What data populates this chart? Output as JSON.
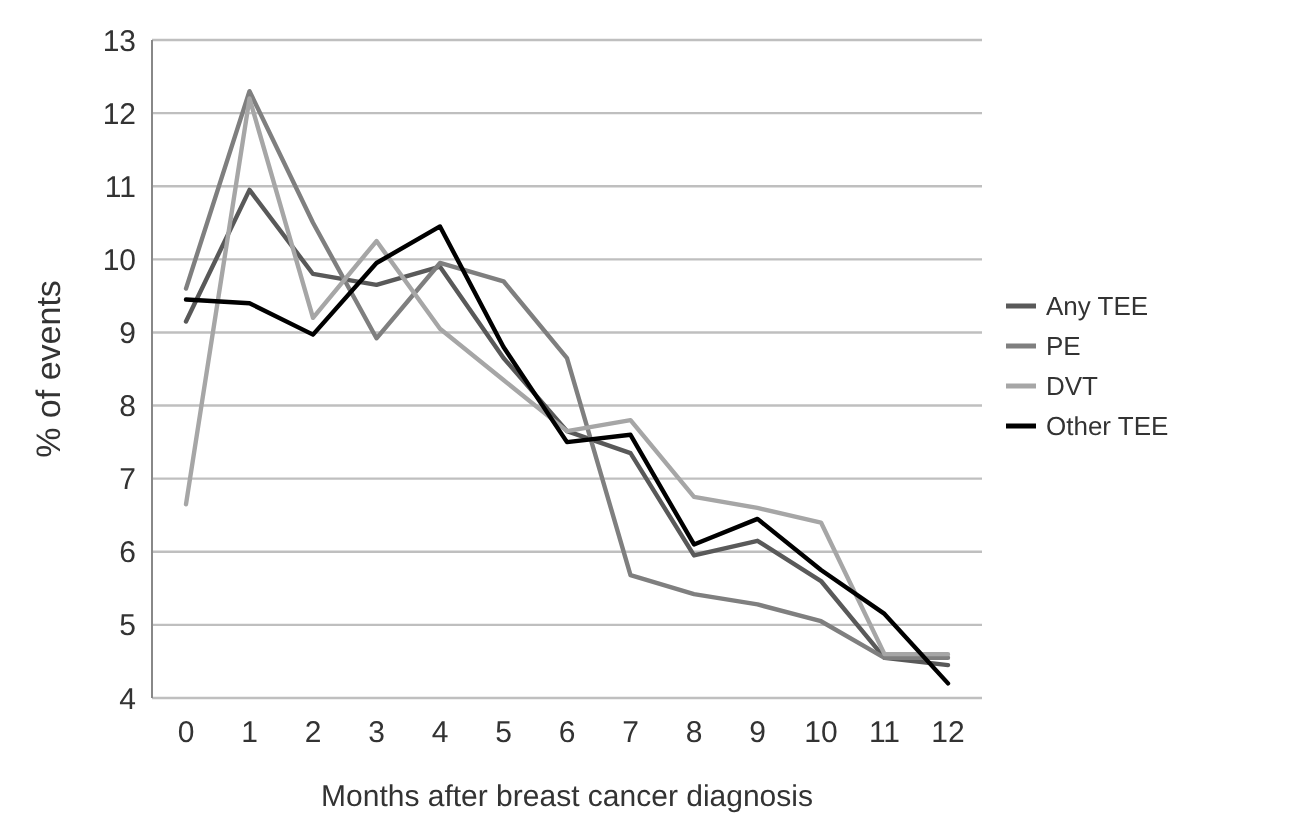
{
  "chart_data": {
    "type": "line",
    "xlabel": "Months after breast cancer diagnosis",
    "ylabel": "% of events",
    "categories": [
      "0",
      "1",
      "2",
      "3",
      "4",
      "5",
      "6",
      "7",
      "8",
      "9",
      "10",
      "11",
      "12"
    ],
    "series": [
      {
        "name": "Any TEE",
        "color": "#595959",
        "values": [
          9.15,
          10.95,
          9.8,
          9.65,
          9.9,
          8.65,
          7.65,
          7.35,
          5.95,
          6.15,
          5.6,
          4.55,
          4.45
        ]
      },
      {
        "name": "PE",
        "color": "#7f7f7f",
        "values": [
          9.6,
          12.3,
          10.5,
          8.92,
          9.95,
          9.7,
          8.65,
          5.68,
          5.42,
          5.28,
          5.05,
          4.55,
          4.55
        ]
      },
      {
        "name": "DVT",
        "color": "#a6a6a6",
        "values": [
          6.65,
          12.2,
          9.2,
          10.25,
          9.05,
          8.35,
          7.65,
          7.8,
          6.75,
          6.6,
          6.4,
          4.6,
          4.6
        ]
      },
      {
        "name": "Other TEE",
        "color": "#000000",
        "values": [
          9.45,
          9.4,
          8.97,
          9.95,
          10.45,
          8.8,
          7.5,
          7.6,
          6.1,
          6.45,
          5.75,
          5.15,
          4.2
        ]
      }
    ],
    "ylim": [
      4,
      13
    ],
    "yticks": [
      4,
      5,
      6,
      7,
      8,
      9,
      10,
      11,
      12,
      13
    ],
    "grid": "y",
    "legend": "right",
    "marker": "none",
    "line_style": "solid"
  }
}
